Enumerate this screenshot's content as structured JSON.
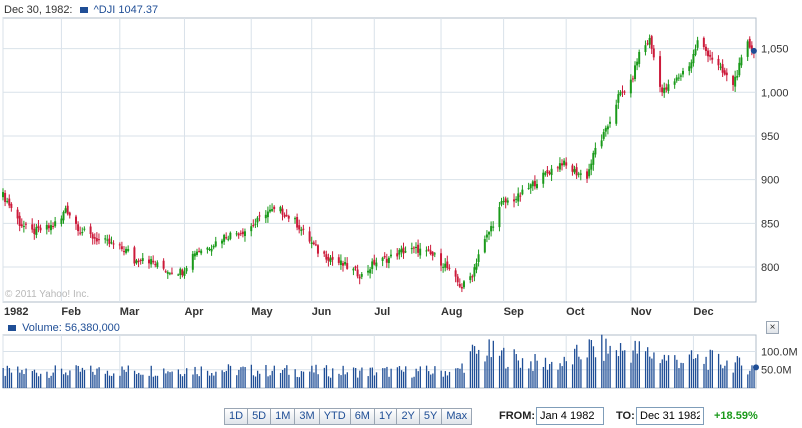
{
  "header": {
    "date": "Dec 30, 1982:",
    "ticker": "^DJI 1047.37"
  },
  "colors": {
    "up": "#1a9a1a",
    "down": "#cc1a3a",
    "volume": "#1f4e96",
    "grid": "#d9e2ea",
    "axis": "#b0bcc8",
    "text": "#333333"
  },
  "watermark": "© 2011 Yahoo! Inc.",
  "chart_data": [
    {
      "type": "candlestick",
      "series": [
        {
          "name": "^DJI",
          "last": 1047.37
        }
      ],
      "ylim": [
        760,
        1085
      ],
      "y_ticks": [
        800,
        850,
        900,
        950,
        1000,
        1050
      ],
      "y_tick_labels": [
        "800",
        "850",
        "900",
        "950",
        "1,000",
        "1,050"
      ],
      "x_tick_labels": [
        "1982",
        "Feb",
        "Mar",
        "Apr",
        "May",
        "Jun",
        "Jul",
        "Aug",
        "Sep",
        "Oct",
        "Nov",
        "Dec"
      ],
      "x_start": "1982-01-04",
      "x_end": "1982-12-31",
      "x_tick_dates": [
        "1982-01-04",
        "1982-02-01",
        "1982-03-01",
        "1982-04-01",
        "1982-05-03",
        "1982-06-01",
        "1982-07-01",
        "1982-08-02",
        "1982-09-01",
        "1982-10-01",
        "1982-11-01",
        "1982-12-01"
      ],
      "close_points": [
        [
          "1982-01-04",
          882
        ],
        [
          "1982-01-08",
          868
        ],
        [
          "1982-01-12",
          850
        ],
        [
          "1982-01-18",
          840
        ],
        [
          "1982-01-26",
          845
        ],
        [
          "1982-02-01",
          855
        ],
        [
          "1982-02-03",
          868
        ],
        [
          "1982-02-10",
          842
        ],
        [
          "1982-02-18",
          832
        ],
        [
          "1982-02-26",
          825
        ],
        [
          "1982-03-05",
          818
        ],
        [
          "1982-03-08",
          806
        ],
        [
          "1982-03-12",
          812
        ],
        [
          "1982-03-19",
          802
        ],
        [
          "1982-03-24",
          796
        ],
        [
          "1982-03-31",
          795
        ],
        [
          "1982-04-06",
          818
        ],
        [
          "1982-04-12",
          822
        ],
        [
          "1982-04-20",
          835
        ],
        [
          "1982-04-30",
          842
        ],
        [
          "1982-05-05",
          850
        ],
        [
          "1982-05-10",
          863
        ],
        [
          "1982-05-17",
          865
        ],
        [
          "1982-05-24",
          852
        ],
        [
          "1982-05-28",
          840
        ],
        [
          "1982-06-04",
          818
        ],
        [
          "1982-06-10",
          810
        ],
        [
          "1982-06-18",
          800
        ],
        [
          "1982-06-25",
          790
        ],
        [
          "1982-07-01",
          805
        ],
        [
          "1982-07-08",
          810
        ],
        [
          "1982-07-14",
          818
        ],
        [
          "1982-07-22",
          820
        ],
        [
          "1982-07-30",
          812
        ],
        [
          "1982-08-04",
          802
        ],
        [
          "1982-08-09",
          785
        ],
        [
          "1982-08-12",
          777
        ],
        [
          "1982-08-17",
          792
        ],
        [
          "1982-08-20",
          815
        ],
        [
          "1982-08-25",
          840
        ],
        [
          "1982-08-31",
          872
        ],
        [
          "1982-09-08",
          880
        ],
        [
          "1982-09-15",
          895
        ],
        [
          "1982-09-22",
          908
        ],
        [
          "1982-09-29",
          920
        ],
        [
          "1982-10-01",
          915
        ],
        [
          "1982-10-06",
          908
        ],
        [
          "1982-10-11",
          904
        ],
        [
          "1982-10-15",
          935
        ],
        [
          "1982-10-20",
          955
        ],
        [
          "1982-10-26",
          995
        ],
        [
          "1982-11-01",
          1010
        ],
        [
          "1982-11-05",
          1045
        ],
        [
          "1982-11-10",
          1060
        ],
        [
          "1982-11-16",
          1000
        ],
        [
          "1982-11-22",
          1012
        ],
        [
          "1982-11-30",
          1035
        ],
        [
          "1982-12-03",
          1058
        ],
        [
          "1982-12-09",
          1042
        ],
        [
          "1982-12-15",
          1022
        ],
        [
          "1982-12-20",
          1010
        ],
        [
          "1982-12-27",
          1055
        ],
        [
          "1982-12-30",
          1047.37
        ]
      ]
    },
    {
      "type": "bar",
      "series": [
        {
          "name": "Volume",
          "last": "56,380,000"
        }
      ],
      "ylim": [
        0,
        145
      ],
      "y_ticks": [
        50,
        100
      ],
      "y_tick_labels": [
        "50.0M",
        "100.0M"
      ],
      "unit": "M",
      "volume_points": [
        [
          "1982-01-04",
          45
        ],
        [
          "1982-02-15",
          47
        ],
        [
          "1982-03-31",
          52
        ],
        [
          "1982-05-15",
          48
        ],
        [
          "1982-06-30",
          46
        ],
        [
          "1982-08-10",
          47
        ],
        [
          "1982-08-17",
          95
        ],
        [
          "1982-08-25",
          100
        ],
        [
          "1982-09-15",
          70
        ],
        [
          "1982-10-01",
          68
        ],
        [
          "1982-10-11",
          110
        ],
        [
          "1982-11-04",
          105
        ],
        [
          "1982-11-20",
          80
        ],
        [
          "1982-12-10",
          78
        ],
        [
          "1982-12-31",
          56.38
        ]
      ]
    }
  ],
  "volume_header": {
    "label": "Volume: 56,380,000"
  },
  "close_label": "×",
  "ranges": [
    "1D",
    "5D",
    "1M",
    "3M",
    "YTD",
    "6M",
    "1Y",
    "2Y",
    "5Y",
    "Max"
  ],
  "controls": {
    "from_label": "FROM:",
    "from_value": "Jan 4 1982",
    "to_label": "TO:",
    "to_value": "Dec 31 1982",
    "change": "+18.59%"
  }
}
